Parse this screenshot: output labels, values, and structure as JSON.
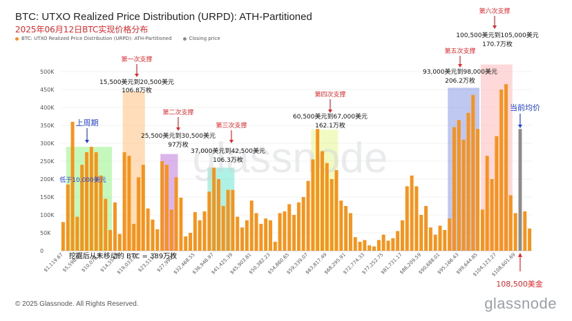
{
  "header": {
    "title": "BTC: UTXO Realized Price Distribution (URPD): ATH-Partitioned",
    "subtitle": "2025年06月12日BTC实现价格分布",
    "legend_series": "BTC: UTXO Realized Price Distribution (URPD): ATH-Partitioned",
    "legend_close": "Closing price"
  },
  "footer": {
    "copyright": "© 2025 Glassnode. All Rights Reserved.",
    "brand": "glassnode",
    "watermark": "glassnode"
  },
  "colors": {
    "bar": "#f7931a",
    "close": "#8c8c8c",
    "grid": "#e6e6e6",
    "annotation_red": "#e3262a",
    "annotation_blue": "#1f3fd6"
  },
  "chart_data": {
    "type": "bar",
    "ylim": [
      0,
      500000
    ],
    "yticks": [
      0,
      50000,
      100000,
      150000,
      200000,
      250000,
      300000,
      350000,
      400000,
      450000,
      500000
    ],
    "ytick_labels": [
      "0",
      "50K",
      "100K",
      "150K",
      "200K",
      "250K",
      "300K",
      "350K",
      "400K",
      "450K",
      "500K"
    ],
    "xtick_labels": [
      "$1,119.67",
      "$5,598.03",
      "$10,076.4",
      "$14,554.8",
      "$19,033.25",
      "$23,511.7",
      "$27,990.1",
      "$32,468.55",
      "$36,946.97",
      "$41,425.39",
      "$45,903.81",
      "$50,382.23",
      "$54,860.65",
      "$59,339.07",
      "$63,817.49",
      "$68,295.91",
      "$72,774.33",
      "$77,252.75",
      "$81,731.17",
      "$86,209.59",
      "$90,688.01",
      "$95,166.43",
      "$99,644.85",
      "$104,123.27",
      "$108,601.69"
    ],
    "values": [
      80000,
      185000,
      360000,
      95000,
      240000,
      275000,
      290000,
      275000,
      210000,
      145000,
      58000,
      135000,
      47000,
      275000,
      265000,
      75000,
      205000,
      240000,
      118000,
      87000,
      60000,
      250000,
      240000,
      115000,
      205000,
      148000,
      40000,
      50000,
      108000,
      85000,
      110000,
      165000,
      232000,
      200000,
      125000,
      170000,
      170000,
      95000,
      65000,
      85000,
      140000,
      105000,
      75000,
      90000,
      85000,
      25000,
      105000,
      110000,
      130000,
      100000,
      135000,
      150000,
      195000,
      255000,
      340000,
      278000,
      245000,
      200000,
      225000,
      140000,
      125000,
      105000,
      38000,
      25000,
      30000,
      15000,
      12000,
      30000,
      45000,
      28000,
      35000,
      55000,
      85000,
      180000,
      210000,
      180000,
      100000,
      125000,
      65000,
      45000,
      70000,
      58000,
      90000,
      345000,
      365000,
      310000,
      385000,
      435000,
      340000,
      115000,
      265000,
      200000,
      320000,
      450000,
      465000,
      155000,
      105000,
      340000,
      110000,
      62000
    ],
    "close_index": 97,
    "annotations": {
      "prev_cycle": "上周期",
      "below_10k": "低于10,000美元",
      "s1_title": "第一次支撑",
      "s1_range": "15,500美元到20,500美元",
      "s1_amount": "106.8万枚",
      "s2_title": "第二次支撑",
      "s2_range": "25,500美元到30,500美元",
      "s2_amount": "97万枚",
      "s3_title": "第三次支撑",
      "s3_range": "37,000美元到42,500美元",
      "s3_amount": "106.3万枚",
      "s4_title": "第四次支撑",
      "s4_range": "60,500美元到67,000美元",
      "s4_amount": "162.1万枚",
      "s5_title": "第五次支撑",
      "s5_range": "93,000美元到98,000美元",
      "s5_amount": "206.2万枚",
      "s6_title": "第六次支撑",
      "s6_range": "100,500美元到105,000美元",
      "s6_amount": "170.7万枚",
      "current_avg": "当前均价",
      "price_now": "108,500美金",
      "unmoved": "挖掘后从未移动的 BTC = 389万枚"
    }
  }
}
